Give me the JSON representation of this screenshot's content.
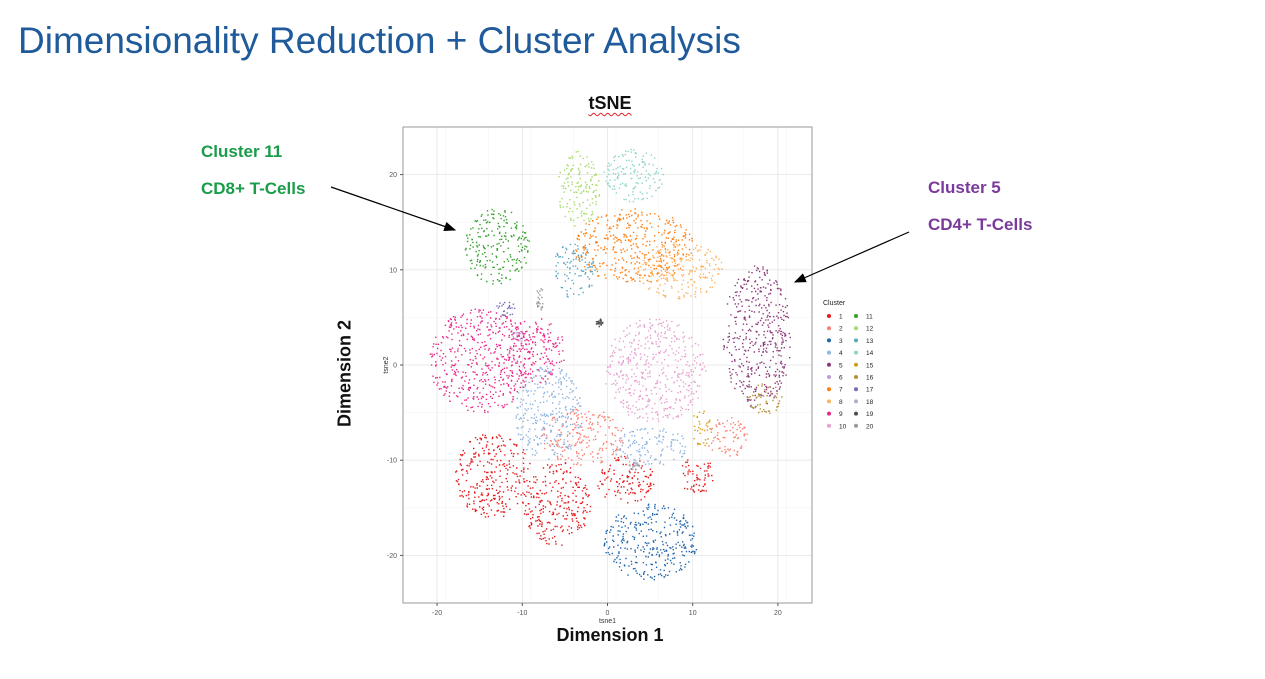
{
  "slide": {
    "title": "Dimensionality Reduction + Cluster Analysis",
    "plot_title": "tSNE",
    "x_dimension_label": "Dimension 1",
    "y_dimension_label": "Dimension 2"
  },
  "annotations": {
    "left": {
      "line1": "Cluster 11",
      "line2": "CD8+ T-Cells",
      "color": "#1a9c4a"
    },
    "right": {
      "line1": "Cluster 5",
      "line2": "CD4+ T-Cells",
      "color": "#7a3a9c"
    }
  },
  "chart_data": {
    "type": "scatter",
    "title": "tSNE",
    "xlabel": "tsne1",
    "ylabel": "tsne2",
    "xlim": [
      -24,
      24
    ],
    "ylim": [
      -25,
      25
    ],
    "xticks": [
      -20,
      -10,
      0,
      10,
      20
    ],
    "yticks": [
      -20,
      -10,
      0,
      10,
      20
    ],
    "grid": true,
    "legend": {
      "title": "Cluster",
      "placement": "right"
    },
    "series": [
      {
        "name": "1",
        "color": "#e41a1c",
        "regions": [
          {
            "cx": -13.5,
            "cy": -11.5,
            "rx": 4.5,
            "ry": 4.5
          },
          {
            "cx": -6,
            "cy": -14.5,
            "rx": 4,
            "ry": 4.5
          },
          {
            "cx": 2,
            "cy": -12,
            "rx": 3.5,
            "ry": 2.5
          },
          {
            "cx": 10.5,
            "cy": -11.5,
            "rx": 2.2,
            "ry": 2
          }
        ]
      },
      {
        "name": "2",
        "color": "#fb8072",
        "regions": [
          {
            "cx": -3,
            "cy": -7.5,
            "rx": 5,
            "ry": 3
          },
          {
            "cx": 14,
            "cy": -7.5,
            "rx": 2.5,
            "ry": 2.2
          }
        ]
      },
      {
        "name": "3",
        "color": "#2166ac",
        "regions": [
          {
            "cx": 5,
            "cy": -18.5,
            "rx": 5.5,
            "ry": 4
          }
        ]
      },
      {
        "name": "4",
        "color": "#8fb4e0",
        "regions": [
          {
            "cx": -7,
            "cy": -5,
            "rx": 4,
            "ry": 5
          },
          {
            "cx": 5,
            "cy": -8.5,
            "rx": 4.5,
            "ry": 2
          }
        ]
      },
      {
        "name": "5",
        "color": "#8b3a78",
        "regions": [
          {
            "cx": 17.5,
            "cy": 3,
            "rx": 4,
            "ry": 7.5
          }
        ]
      },
      {
        "name": "6",
        "color": "#c49bd4",
        "regions": [
          {
            "cx": -10.5,
            "cy": 3,
            "rx": 0.8,
            "ry": 0.8
          }
        ]
      },
      {
        "name": "7",
        "color": "#ff7f0e",
        "regions": [
          {
            "cx": 3,
            "cy": 12.5,
            "rx": 7,
            "ry": 4
          }
        ]
      },
      {
        "name": "8",
        "color": "#fdb462",
        "regions": [
          {
            "cx": 8.5,
            "cy": 10,
            "rx": 5,
            "ry": 3
          }
        ]
      },
      {
        "name": "9",
        "color": "#e7298a",
        "regions": [
          {
            "cx": -15,
            "cy": 0.5,
            "rx": 6,
            "ry": 5.5
          },
          {
            "cx": -8.5,
            "cy": 1.5,
            "rx": 3.5,
            "ry": 3.5
          }
        ]
      },
      {
        "name": "10",
        "color": "#e7a1cf",
        "regions": [
          {
            "cx": 5.5,
            "cy": -0.5,
            "rx": 6,
            "ry": 5.5
          }
        ]
      },
      {
        "name": "11",
        "color": "#33a02c",
        "regions": [
          {
            "cx": -13,
            "cy": 12.5,
            "rx": 3.8,
            "ry": 4
          }
        ]
      },
      {
        "name": "12",
        "color": "#a6d96a",
        "regions": [
          {
            "cx": -3.5,
            "cy": 18.5,
            "rx": 2.5,
            "ry": 4
          }
        ]
      },
      {
        "name": "13",
        "color": "#5aa8c4",
        "regions": [
          {
            "cx": -4,
            "cy": 10,
            "rx": 2.5,
            "ry": 3
          }
        ]
      },
      {
        "name": "14",
        "color": "#8ed3c7",
        "regions": [
          {
            "cx": 3,
            "cy": 20,
            "rx": 3.5,
            "ry": 2.8
          }
        ]
      },
      {
        "name": "15",
        "color": "#d4a017",
        "regions": [
          {
            "cx": 11,
            "cy": -6.5,
            "rx": 1.2,
            "ry": 2
          }
        ]
      },
      {
        "name": "16",
        "color": "#b3933a",
        "regions": [
          {
            "cx": 18.5,
            "cy": -3.5,
            "rx": 2,
            "ry": 1.8
          }
        ]
      },
      {
        "name": "17",
        "color": "#7570b3",
        "regions": [
          {
            "cx": -12,
            "cy": 6,
            "rx": 1.2,
            "ry": 0.8
          }
        ]
      },
      {
        "name": "18",
        "color": "#b0b0c0",
        "regions": [
          {
            "cx": 3,
            "cy": -10.5,
            "rx": 0.6,
            "ry": 0.6
          }
        ]
      },
      {
        "name": "19",
        "color": "#4d4d4d",
        "regions": [
          {
            "cx": -1,
            "cy": 4.5,
            "rx": 0.4,
            "ry": 0.4
          }
        ]
      },
      {
        "name": "20",
        "color": "#999999",
        "regions": [
          {
            "cx": -8,
            "cy": 7,
            "rx": 0.5,
            "ry": 1.2
          }
        ]
      }
    ]
  }
}
